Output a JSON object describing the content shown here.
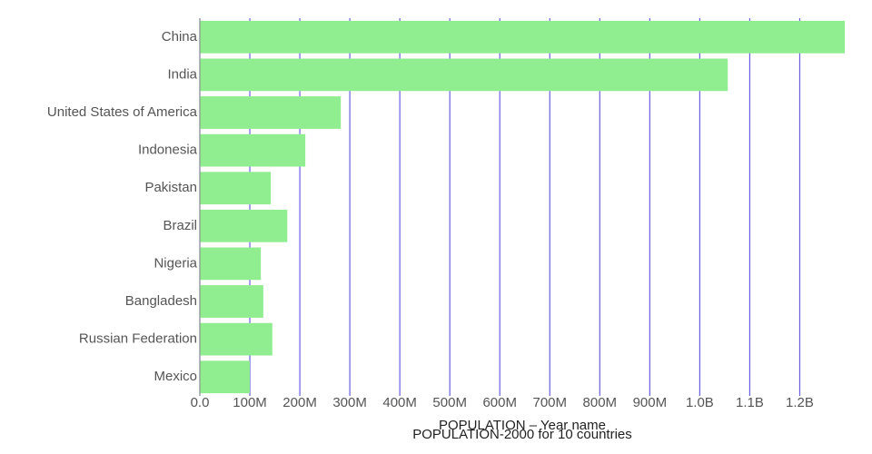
{
  "chart_data": {
    "type": "barh",
    "x_label": "POPULATION – Year name",
    "subtitle": "POPULATION-2000 for 10 countries",
    "categories": [
      "China",
      "India",
      "United States of America",
      "Indonesia",
      "Pakistan",
      "Brazil",
      "Nigeria",
      "Bangladesh",
      "Russian Federation",
      "Mexico"
    ],
    "values": [
      1290000000,
      1056000000,
      282000000,
      211000000,
      142000000,
      175000000,
      122000000,
      127000000,
      145000000,
      100000000
    ],
    "color": "#90ee90",
    "grid_color": "#6a5fe0",
    "grid": true,
    "xlim": [
      0,
      1290000000
    ],
    "xticks": [
      {
        "value": 0,
        "label": "0.0"
      },
      {
        "value": 100000000,
        "label": "100M"
      },
      {
        "value": 200000000,
        "label": "200M"
      },
      {
        "value": 300000000,
        "label": "300M"
      },
      {
        "value": 400000000,
        "label": "400M"
      },
      {
        "value": 500000000,
        "label": "500M"
      },
      {
        "value": 600000000,
        "label": "600M"
      },
      {
        "value": 700000000,
        "label": "700M"
      },
      {
        "value": 800000000,
        "label": "800M"
      },
      {
        "value": 900000000,
        "label": "900M"
      },
      {
        "value": 1000000000,
        "label": "1.0B"
      },
      {
        "value": 1100000000,
        "label": "1.1B"
      },
      {
        "value": 1200000000,
        "label": "1.2B"
      }
    ]
  }
}
